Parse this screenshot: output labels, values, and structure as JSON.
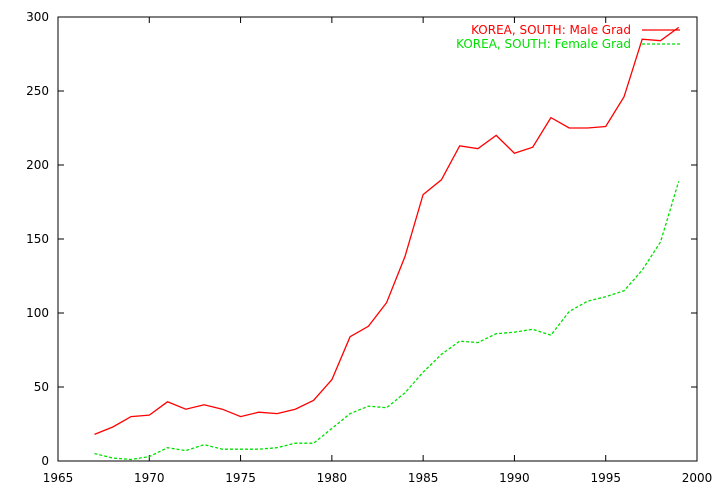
{
  "chart_data": {
    "type": "line",
    "title": "",
    "xlabel": "",
    "ylabel": "",
    "xlim": [
      1965,
      2000
    ],
    "ylim": [
      0,
      300
    ],
    "xticks": [
      1965,
      1970,
      1975,
      1980,
      1985,
      1990,
      1995,
      2000
    ],
    "yticks": [
      0,
      50,
      100,
      150,
      200,
      250,
      300
    ],
    "grid": false,
    "legend_position": "top-right",
    "series": [
      {
        "name": "KOREA, SOUTH: Male Grad",
        "color": "#ff0000",
        "dash": "solid",
        "x": [
          1967,
          1968,
          1969,
          1970,
          1971,
          1972,
          1973,
          1974,
          1975,
          1976,
          1977,
          1978,
          1979,
          1980,
          1981,
          1982,
          1983,
          1984,
          1985,
          1986,
          1987,
          1988,
          1989,
          1990,
          1991,
          1992,
          1993,
          1994,
          1995,
          1996,
          1997,
          1998,
          1999
        ],
        "y": [
          18,
          23,
          30,
          31,
          40,
          35,
          38,
          35,
          30,
          33,
          32,
          35,
          41,
          55,
          84,
          91,
          107,
          138,
          180,
          190,
          213,
          211,
          220,
          208,
          212,
          232,
          225,
          225,
          226,
          246,
          285,
          284,
          293
        ]
      },
      {
        "name": "KOREA, SOUTH: Female Grad",
        "color": "#00e000",
        "dash": "dashed",
        "x": [
          1967,
          1968,
          1969,
          1970,
          1971,
          1972,
          1973,
          1974,
          1975,
          1976,
          1977,
          1978,
          1979,
          1980,
          1981,
          1982,
          1983,
          1984,
          1985,
          1986,
          1987,
          1988,
          1989,
          1990,
          1991,
          1992,
          1993,
          1994,
          1995,
          1996,
          1997,
          1998,
          1999
        ],
        "y": [
          5,
          2,
          1,
          3,
          9,
          7,
          11,
          8,
          8,
          8,
          9,
          12,
          12,
          22,
          32,
          37,
          36,
          46,
          60,
          72,
          81,
          80,
          86,
          87,
          89,
          85,
          101,
          108,
          111,
          115,
          129,
          148,
          189
        ]
      }
    ]
  }
}
